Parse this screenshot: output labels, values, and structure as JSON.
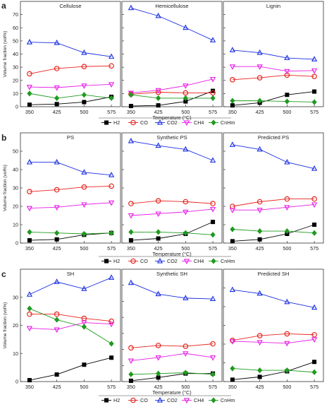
{
  "figure": {
    "panel_letters": [
      "a",
      "b",
      "c"
    ],
    "ylabel": "Volume fraction (vol%)",
    "xlabel": "Temperature (°C)",
    "legend_labels": [
      "H2",
      "CO",
      "CO2",
      "CH4",
      "CnHm"
    ]
  },
  "chart_data": [
    {
      "panel": "a",
      "type": "line",
      "title": "Cellulose",
      "x": [
        350,
        425,
        500,
        575
      ],
      "ylim": [
        0,
        80
      ],
      "yticks": [
        0,
        10,
        20,
        30,
        40,
        50,
        60,
        70
      ],
      "xlabel": "Temperature (°C)",
      "ylabel": "Volume fraction (vol%)",
      "grid": false,
      "legend": "bottom",
      "series": [
        {
          "name": "H2",
          "values": [
            1.5,
            2.0,
            3.5,
            7.5
          ],
          "color": "#000000",
          "marker": "square"
        },
        {
          "name": "CO",
          "values": [
            25,
            29,
            30.5,
            31
          ],
          "color": "#e8231c",
          "marker": "circle"
        },
        {
          "name": "CO2",
          "values": [
            49,
            48.5,
            41,
            38
          ],
          "color": "#1a2ee0",
          "marker": "triangle-up"
        },
        {
          "name": "CH4",
          "values": [
            15,
            14.5,
            16,
            17
          ],
          "color": "#e61ce6",
          "marker": "triangle-down"
        },
        {
          "name": "CnHm",
          "values": [
            10,
            6.5,
            9,
            6.5
          ],
          "color": "#1f9a1f",
          "marker": "diamond"
        }
      ]
    },
    {
      "panel": "a",
      "type": "line",
      "title": "Hemicellulose",
      "x": [
        350,
        425,
        500,
        575
      ],
      "ylim": [
        0,
        80
      ],
      "yticks": [
        0,
        10,
        20,
        30,
        40,
        50,
        60,
        70
      ],
      "xlabel": "Temperature (°C)",
      "ylabel": "Volume fraction (vol%)",
      "grid": false,
      "legend": "bottom",
      "series": [
        {
          "name": "H2",
          "values": [
            0.5,
            1.0,
            4.0,
            12.0
          ],
          "color": "#000000",
          "marker": "square"
        },
        {
          "name": "CO",
          "values": [
            9.5,
            11.0,
            10.5,
            10.5
          ],
          "color": "#e8231c",
          "marker": "circle"
        },
        {
          "name": "CO2",
          "values": [
            75,
            69,
            60,
            50.5
          ],
          "color": "#1a2ee0",
          "marker": "triangle-up"
        },
        {
          "name": "CH4",
          "values": [
            10.5,
            12.5,
            16,
            21
          ],
          "color": "#e61ce6",
          "marker": "triangle-down"
        },
        {
          "name": "CnHm",
          "values": [
            9,
            6.5,
            6.5,
            6.5
          ],
          "color": "#1f9a1f",
          "marker": "diamond"
        }
      ]
    },
    {
      "panel": "a",
      "type": "line",
      "title": "Lignin",
      "x": [
        350,
        425,
        500,
        575
      ],
      "ylim": [
        0,
        80
      ],
      "yticks": [
        0,
        10,
        20,
        30,
        40,
        50,
        60,
        70
      ],
      "xlabel": "Temperature (°C)",
      "ylabel": "Volume fraction (vol%)",
      "grid": false,
      "legend": "bottom",
      "series": [
        {
          "name": "H2",
          "values": [
            1.0,
            3.0,
            9.0,
            11.5
          ],
          "color": "#000000",
          "marker": "square"
        },
        {
          "name": "CO",
          "values": [
            20.5,
            22,
            24,
            23
          ],
          "color": "#e8231c",
          "marker": "circle"
        },
        {
          "name": "CO2",
          "values": [
            43,
            41,
            37,
            36
          ],
          "color": "#1a2ee0",
          "marker": "triangle-up"
        },
        {
          "name": "CH4",
          "values": [
            30.5,
            30.5,
            27,
            27.5
          ],
          "color": "#e61ce6",
          "marker": "triangle-down"
        },
        {
          "name": "CnHm",
          "values": [
            4.5,
            4.5,
            4.0,
            3.5
          ],
          "color": "#1f9a1f",
          "marker": "diamond"
        }
      ]
    },
    {
      "panel": "b",
      "type": "line",
      "title": "PS",
      "x": [
        350,
        425,
        500,
        575
      ],
      "ylim": [
        0,
        60
      ],
      "yticks": [
        0,
        10,
        20,
        30,
        40,
        50
      ],
      "xlabel": "Temperature (°C)",
      "ylabel": "Volume fraction (vol%)",
      "grid": false,
      "legend": "bottom",
      "series": [
        {
          "name": "H2",
          "values": [
            1.5,
            2.0,
            4.5,
            5.5
          ],
          "color": "#000000",
          "marker": "square"
        },
        {
          "name": "CO",
          "values": [
            28,
            29,
            30.5,
            31
          ],
          "color": "#e8231c",
          "marker": "circle"
        },
        {
          "name": "CO2",
          "values": [
            44,
            44,
            38.5,
            37
          ],
          "color": "#1a2ee0",
          "marker": "triangle-up"
        },
        {
          "name": "CH4",
          "values": [
            19,
            19.5,
            21,
            22
          ],
          "color": "#e61ce6",
          "marker": "triangle-down"
        },
        {
          "name": "CnHm",
          "values": [
            6,
            5.5,
            5.0,
            5.5
          ],
          "color": "#1f9a1f",
          "marker": "diamond"
        }
      ]
    },
    {
      "panel": "b",
      "type": "line",
      "title": "Synthetic PS",
      "x": [
        350,
        425,
        500,
        575
      ],
      "ylim": [
        0,
        60
      ],
      "yticks": [
        0,
        10,
        20,
        30,
        40,
        50
      ],
      "xlabel": "Temperature (°C)",
      "ylabel": "Volume fraction (vol%)",
      "grid": false,
      "legend": "bottom",
      "series": [
        {
          "name": "H2",
          "values": [
            1.5,
            2.5,
            5.0,
            11.5
          ],
          "color": "#000000",
          "marker": "square"
        },
        {
          "name": "CO",
          "values": [
            21.5,
            23,
            22.5,
            21.5
          ],
          "color": "#e8231c",
          "marker": "circle"
        },
        {
          "name": "CO2",
          "values": [
            55.5,
            53,
            51,
            45
          ],
          "color": "#1a2ee0",
          "marker": "triangle-up"
        },
        {
          "name": "CH4",
          "values": [
            15,
            16,
            17,
            18.5
          ],
          "color": "#e61ce6",
          "marker": "triangle-down"
        },
        {
          "name": "CnHm",
          "values": [
            6,
            6,
            5.5,
            4.5
          ],
          "color": "#1f9a1f",
          "marker": "diamond"
        }
      ]
    },
    {
      "panel": "b",
      "type": "line",
      "title": "Predicted PS",
      "x": [
        350,
        425,
        500,
        575
      ],
      "ylim": [
        0,
        60
      ],
      "yticks": [
        0,
        10,
        20,
        30,
        40,
        50
      ],
      "xlabel": "Temperature (°C)",
      "ylabel": "Volume fraction (vol%)",
      "grid": false,
      "legend": "bottom",
      "series": [
        {
          "name": "H2",
          "values": [
            1.0,
            2.0,
            5.0,
            10.0
          ],
          "color": "#000000",
          "marker": "square"
        },
        {
          "name": "CO",
          "values": [
            20,
            22.5,
            24,
            24
          ],
          "color": "#e8231c",
          "marker": "circle"
        },
        {
          "name": "CO2",
          "values": [
            53.5,
            51,
            44,
            40.5
          ],
          "color": "#1a2ee0",
          "marker": "triangle-up"
        },
        {
          "name": "CH4",
          "values": [
            18,
            18,
            19.5,
            21
          ],
          "color": "#e61ce6",
          "marker": "triangle-down"
        },
        {
          "name": "CnHm",
          "values": [
            7.5,
            6.5,
            6.5,
            5.5
          ],
          "color": "#1f9a1f",
          "marker": "diamond"
        }
      ]
    },
    {
      "panel": "c",
      "type": "line",
      "title": "SH",
      "x": [
        350,
        425,
        500,
        575
      ],
      "ylim": [
        0,
        40
      ],
      "yticks": [
        0,
        10,
        20,
        30
      ],
      "xlabel": "Temperature (°C)",
      "ylabel": "Volume fraction (vol%)",
      "grid": false,
      "legend": "bottom",
      "series": [
        {
          "name": "H2",
          "values": [
            0.5,
            2.5,
            6.0,
            8.5
          ],
          "color": "#000000",
          "marker": "square"
        },
        {
          "name": "CO",
          "values": [
            24,
            24,
            22.5,
            21.5
          ],
          "color": "#e8231c",
          "marker": "circle"
        },
        {
          "name": "CO2",
          "values": [
            31,
            35.5,
            33,
            37
          ],
          "color": "#1a2ee0",
          "marker": "triangle-up"
        },
        {
          "name": "CH4",
          "values": [
            19,
            18.5,
            21,
            20.5
          ],
          "color": "#e61ce6",
          "marker": "triangle-down"
        },
        {
          "name": "CnHm",
          "values": [
            26,
            22,
            19.5,
            13.5
          ],
          "color": "#1f9a1f",
          "marker": "diamond"
        }
      ]
    },
    {
      "panel": "c",
      "type": "line",
      "title": "Synthetic SH",
      "x": [
        350,
        425,
        500,
        575
      ],
      "ylim": [
        0,
        70
      ],
      "yticks": [
        0,
        10,
        20,
        30,
        40,
        50,
        60
      ],
      "xlabel": "Temperature (°C)",
      "ylabel": "Volume fraction (vol%)",
      "grid": false,
      "legend": "bottom",
      "series": [
        {
          "name": "H2",
          "values": [
            0.5,
            2.5,
            5.0,
            5.0
          ],
          "color": "#000000",
          "marker": "square"
        },
        {
          "name": "CO",
          "values": [
            21,
            22.5,
            22,
            23.5
          ],
          "color": "#e8231c",
          "marker": "circle"
        },
        {
          "name": "CO2",
          "values": [
            61.5,
            54.5,
            52,
            51.5
          ],
          "color": "#1a2ee0",
          "marker": "triangle-up"
        },
        {
          "name": "CH4",
          "values": [
            13,
            15,
            17.5,
            15
          ],
          "color": "#e61ce6",
          "marker": "triangle-down"
        },
        {
          "name": "CnHm",
          "values": [
            4.5,
            5,
            5.5,
            4.5
          ],
          "color": "#1f9a1f",
          "marker": "diamond"
        }
      ]
    },
    {
      "panel": "c",
      "type": "line",
      "title": "Predicted SH",
      "x": [
        350,
        425,
        500,
        575
      ],
      "ylim": [
        0,
        60
      ],
      "yticks": [
        0,
        10,
        20,
        30,
        40,
        50
      ],
      "xlabel": "Temperature (°C)",
      "ylabel": "Volume fraction (vol%)",
      "grid": false,
      "legend": "bottom",
      "series": [
        {
          "name": "H2",
          "values": [
            1.0,
            2.5,
            5.5,
            10.5
          ],
          "color": "#000000",
          "marker": "square"
        },
        {
          "name": "CO",
          "values": [
            22,
            24.5,
            25.5,
            25
          ],
          "color": "#e8231c",
          "marker": "circle"
        },
        {
          "name": "CO2",
          "values": [
            49,
            47,
            42.5,
            39.5
          ],
          "color": "#1a2ee0",
          "marker": "triangle-up"
        },
        {
          "name": "CH4",
          "values": [
            21.5,
            21,
            20.5,
            22.5
          ],
          "color": "#e61ce6",
          "marker": "triangle-down"
        },
        {
          "name": "CnHm",
          "values": [
            7,
            6,
            6,
            5
          ],
          "color": "#1f9a1f",
          "marker": "diamond"
        }
      ]
    }
  ]
}
